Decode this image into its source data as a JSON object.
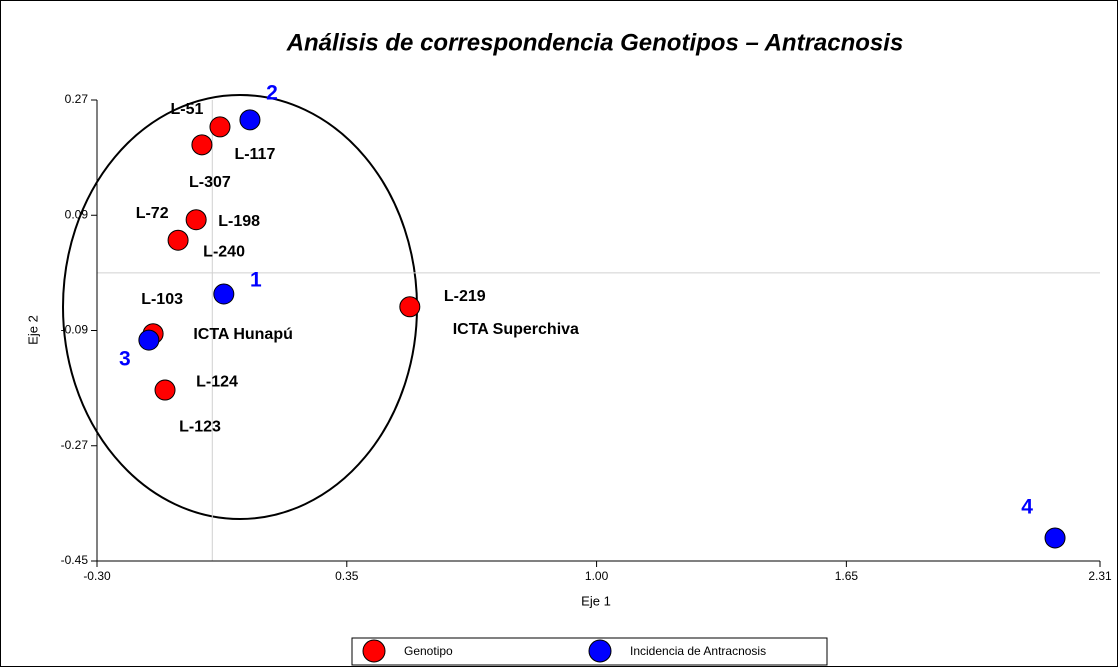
{
  "chart_data": {
    "type": "scatter",
    "title": "Análisis de correspondencia  Genotipos – Antracnosis",
    "x_label": "Eje 1",
    "y_label": "Eje 2",
    "xlim": [
      -0.3,
      2.31
    ],
    "xticks": [
      {
        "value": -0.3,
        "label": "-0.30"
      },
      0.35,
      {
        "value": 1.0,
        "label": "1.00"
      },
      1.65,
      2.31
    ],
    "ylim": [
      -0.45,
      0.27
    ],
    "yticks": [
      0.27,
      0.09,
      -0.09,
      -0.27,
      -0.45
    ],
    "series": [
      {
        "name": "Genotipo",
        "color": "#ff0000",
        "x": [
          0.02,
          -0.027,
          -0.042,
          -0.089,
          -0.154,
          -0.123,
          0.514
        ],
        "values": [
          0.228,
          0.2,
          0.083,
          0.051,
          -0.095,
          -0.183,
          -0.053
        ],
        "point_labels": [
          [
            "L-51"
          ],
          [
            "L-117",
            "L-307"
          ],
          [
            "L-72",
            "L-198"
          ],
          [
            "L-240"
          ],
          [
            "L-103",
            "ICTA Hunapú"
          ],
          [
            "L-124",
            "L-123"
          ],
          [
            "L-219",
            "ICTA Superchiva"
          ]
        ]
      },
      {
        "name": "Incidencia de Antracnosis",
        "color": "#0000ff",
        "x": [
          0.098,
          0.03,
          -0.165,
          2.193
        ],
        "values": [
          0.239,
          -0.033,
          -0.105,
          -0.414
        ],
        "point_labels": [
          [
            "2"
          ],
          [
            "1"
          ],
          [
            "3"
          ],
          [
            "4"
          ]
        ]
      }
    ]
  }
}
